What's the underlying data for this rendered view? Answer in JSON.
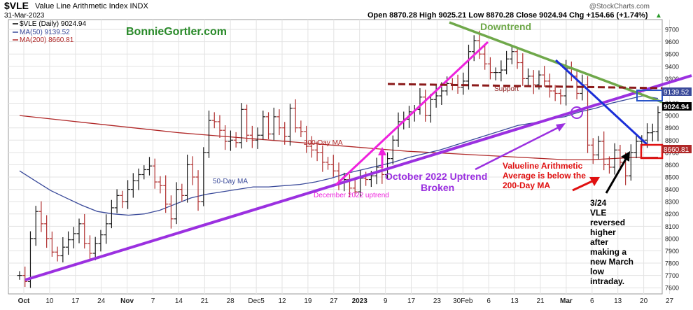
{
  "header": {
    "symbol_title": "$VLE",
    "name": "Value Line Arithmetic Index  INDX",
    "date": "31-Mar-2023",
    "copyright": "@StockCharts.com",
    "ohlc_summary": "Open 8870.28  High 9025.21  Low 8870.28  Close 9024.94  Chg +154.66 (+1.74%)",
    "ohlc_arrow": "▲",
    "legend_main": "$VLE (Daily) 9024.94",
    "legend_ma50": "MA(50) 9139.52",
    "legend_ma200": "MA(200) 8660.81",
    "brand": "BonnieGortler.com"
  },
  "colors": {
    "price": "#1a1a1a",
    "down_bar": "#b03030",
    "ma50": "#3a4a9a",
    "ma200": "#b02828",
    "uptrend": "#9b30e0",
    "dec_uptrend": "#ee22dd",
    "downtrend_green": "#6fa84a",
    "downtrend_blue": "#1a2ed8",
    "support": "#8b1a1a",
    "grid": "#e3e3e3"
  },
  "annotations": {
    "downtrend": "Downtrend",
    "support": "Support",
    "ma200_label": "200-Day MA",
    "ma50_label": "50-Day MA",
    "dec_uptrend": "December 2022 uptrend",
    "october_uptrend_line1": "October 2022 Uptrend",
    "october_uptrend_line2": "Broken",
    "valueline_line1": "Valueline Arithmetic",
    "valueline_line2": "Average is below the",
    "valueline_line3": "200-Day MA",
    "reversal": [
      "3/24",
      "VLE",
      "reversed",
      "higher",
      "after",
      "making a",
      "new March",
      "low",
      "intraday."
    ]
  },
  "chart_data": {
    "type": "ohlc",
    "title": "$VLE Value Line Arithmetic Index INDX",
    "x_axis_labels": [
      "Oct",
      "10",
      "17",
      "24",
      "Nov",
      "7",
      "14",
      "21",
      "28",
      "Dec5",
      "12",
      "19",
      "27",
      "2023",
      "9",
      "17",
      "23",
      "30Feb",
      "6",
      "13",
      "21",
      "Mar",
      "6",
      "13",
      "20",
      "27"
    ],
    "y_axis_labels": [
      "7600",
      "7700",
      "7800",
      "7900",
      "8000",
      "8100",
      "8200",
      "8300",
      "8400",
      "8500",
      "8600",
      "8700",
      "8800",
      "8900",
      "9000",
      "9100",
      "9200",
      "9300",
      "9400",
      "9500",
      "9600",
      "9700"
    ],
    "ylim": [
      7550,
      9780
    ],
    "right_axis_tags": [
      {
        "label": "9139.52",
        "value": 9139.52,
        "color": "#3a4a9a"
      },
      {
        "label": "9024.94",
        "value": 9024.94,
        "color": "#000000"
      },
      {
        "label": "8660.81",
        "value": 8660.81,
        "color": "#b02828"
      }
    ],
    "closes": [
      7700,
      7650,
      8000,
      8220,
      8120,
      8000,
      7890,
      7860,
      7930,
      7990,
      8040,
      8120,
      7960,
      7880,
      7960,
      8030,
      8120,
      8250,
      8350,
      8300,
      8400,
      8470,
      8520,
      8560,
      8590,
      8460,
      8430,
      8280,
      8160,
      8400,
      8350,
      8600,
      8500,
      8300,
      8700,
      8960,
      8950,
      8880,
      8790,
      8800,
      8780,
      9050,
      8840,
      8800,
      8840,
      8990,
      8850,
      8990,
      8900,
      8830,
      9060,
      8900,
      8870,
      8750,
      8720,
      8700,
      8620,
      8600,
      8550,
      8450,
      8480,
      8410,
      8380,
      8490,
      8480,
      8510,
      8580,
      8520,
      8650,
      8800,
      8950,
      8970,
      9030,
      9050,
      9150,
      9000,
      9130,
      9160,
      9200,
      9260,
      9250,
      9230,
      9280,
      9520,
      9610,
      9500,
      9420,
      9350,
      9350,
      9370,
      9460,
      9520,
      9430,
      9300,
      9320,
      9250,
      9330,
      9280,
      9200,
      9180,
      9160,
      9380,
      9320,
      9180,
      9250,
      8760,
      8680,
      8790,
      8600,
      8580,
      8720,
      8620,
      8510,
      8700,
      8790,
      8800,
      8860,
      8870,
      9024.94
    ],
    "ma50": [
      8550,
      8470,
      8390,
      8330,
      8270,
      8220,
      8200,
      8190,
      8200,
      8230,
      8280,
      8330,
      8360,
      8380,
      8400,
      8420,
      8420,
      8430,
      8440,
      8460,
      8490,
      8530,
      8560,
      8590,
      8620,
      8660,
      8690,
      8720,
      8760,
      8800,
      8840,
      8880,
      8920,
      8940,
      8970,
      8990,
      9030,
      9060,
      9100,
      9130,
      9160,
      9139.52
    ],
    "ma200": [
      9000,
      8980,
      8960,
      8940,
      8920,
      8900,
      8880,
      8860,
      8845,
      8830,
      8815,
      8800,
      8785,
      8770,
      8755,
      8740,
      8725,
      8710,
      8700,
      8690,
      8680,
      8670,
      8660,
      8650,
      8640,
      8640,
      8650,
      8660,
      8660.81
    ],
    "lines": [
      {
        "name": "October 2022 uptrend",
        "from": [
          "Oct",
          7660
        ],
        "to": [
          "Mar 31",
          9300
        ]
      },
      {
        "name": "December 2022 uptrend",
        "from": [
          "Dec 22",
          8360
        ],
        "to": [
          "Feb 10",
          9560
        ]
      },
      {
        "name": "Downtrend (green)",
        "from": [
          "Feb 2",
          9740
        ],
        "to": [
          "Mar 31",
          9070
        ]
      },
      {
        "name": "Downtrend (blue)",
        "from": [
          "Mar 3",
          9420
        ],
        "to": [
          "Mar 28",
          8680
        ]
      },
      {
        "name": "Support",
        "value": 9200
      }
    ]
  }
}
